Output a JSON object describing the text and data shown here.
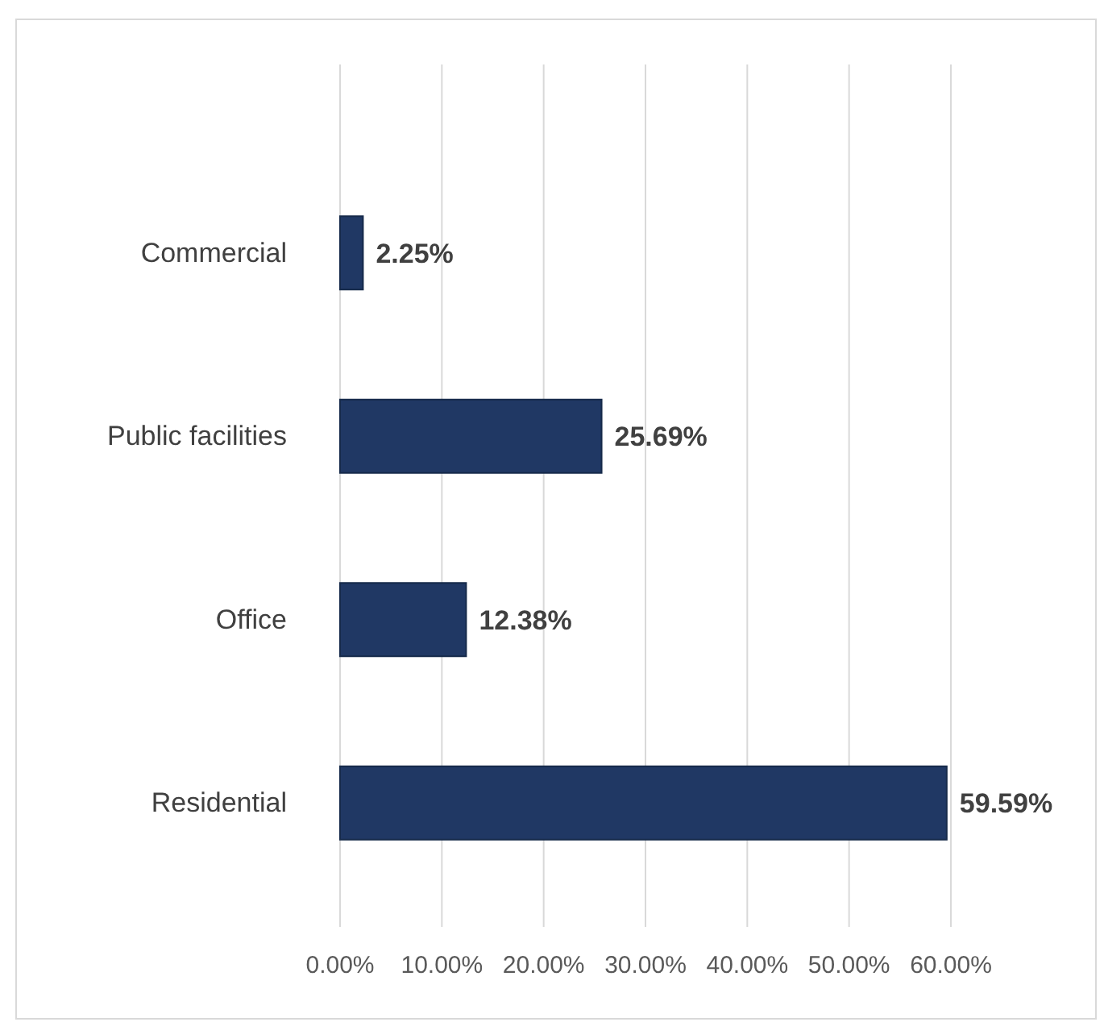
{
  "chart_data": {
    "type": "bar",
    "orientation": "horizontal",
    "categories": [
      "Commercial",
      "Public facilities",
      "Office",
      "Residential"
    ],
    "values": [
      2.25,
      25.69,
      12.38,
      59.59
    ],
    "value_labels": [
      "2.25%",
      "25.69%",
      "12.38%",
      "59.59%"
    ],
    "color": "#203864",
    "xlim": [
      0,
      60
    ],
    "xticks": [
      {
        "value": 0,
        "label": "0.00%"
      },
      {
        "value": 10,
        "label": "10.00%"
      },
      {
        "value": 20,
        "label": "20.00%"
      },
      {
        "value": 30,
        "label": "30.00%"
      },
      {
        "value": 40,
        "label": "40.00%"
      },
      {
        "value": 50,
        "label": "50.00%"
      },
      {
        "value": 60,
        "label": "60.00%"
      }
    ],
    "grid": "x"
  }
}
